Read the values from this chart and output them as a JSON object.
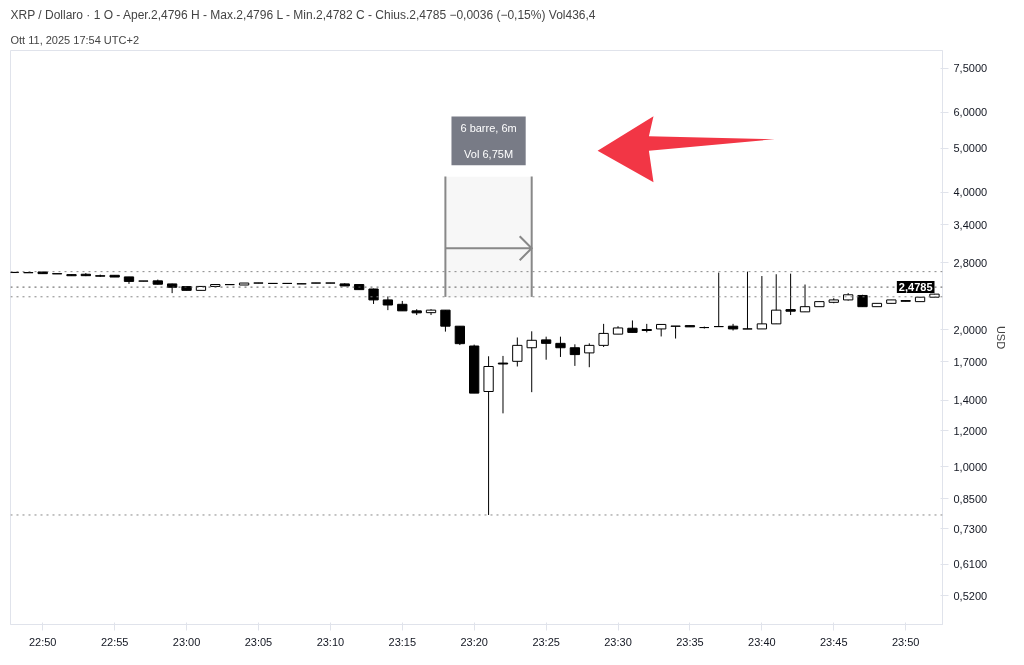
{
  "chart_data": {
    "type": "candlestick",
    "title": "XRP / Dollaro · 1  O - Aper.2,4796  H - Max.2,4796  L - Min.2,4782  C - Chius.2,4785  −0,0036 (−0,15%)  Vol436,4",
    "ylabel": "USD",
    "annotations": [
      "Ott 11, 2025 17:54 UTC+2"
    ],
    "log": "y",
    "grid": false,
    "color": "#000000",
    "x": [
      22.8,
      22.8167,
      22.8333,
      22.85,
      22.8667,
      22.8833,
      22.9,
      22.9167,
      22.9333,
      22.95,
      22.9667,
      22.9833,
      23,
      23.0167,
      23.0333,
      23.05,
      23.0667,
      23.0833,
      23.1,
      23.1167,
      23.1333,
      23.15,
      23.1667,
      23.1833,
      23.2,
      23.2167,
      23.2333,
      23.25,
      23.2667,
      23.2833,
      23.3,
      23.3167,
      23.3333,
      23.35,
      23.3667,
      23.3833,
      23.4,
      23.4167,
      23.4333,
      23.45,
      23.4667,
      23.4833,
      23.5,
      23.5167,
      23.5333,
      23.55,
      23.5667,
      23.5833,
      23.6,
      23.6167,
      23.6333,
      23.65,
      23.6667,
      23.6833,
      23.7,
      23.7167,
      23.7333,
      23.75,
      23.7667,
      23.7833,
      23.8,
      23.8167,
      23.8333,
      23.85,
      23.8667
    ],
    "ohlc": [
      [
        2.67,
        2.67,
        2.667,
        2.668
      ],
      [
        2.668,
        2.668,
        2.665,
        2.665
      ],
      [
        2.676,
        2.676,
        2.653,
        2.653
      ],
      [
        2.653,
        2.655,
        2.65,
        2.65
      ],
      [
        2.64,
        2.64,
        2.625,
        2.625
      ],
      [
        2.645,
        2.66,
        2.62,
        2.626
      ],
      [
        2.625,
        2.64,
        2.61,
        2.62
      ],
      [
        2.631,
        2.631,
        2.608,
        2.608
      ],
      [
        2.61,
        2.61,
        2.519,
        2.551
      ],
      [
        2.556,
        2.556,
        2.553,
        2.555
      ],
      [
        2.558,
        2.575,
        2.511,
        2.515
      ],
      [
        2.519,
        2.523,
        2.404,
        2.476
      ],
      [
        2.485,
        2.485,
        2.438,
        2.438
      ],
      [
        2.438,
        2.487,
        2.438,
        2.487
      ],
      [
        2.487,
        2.511,
        2.487,
        2.511
      ],
      [
        2.51,
        2.512,
        2.508,
        2.51
      ],
      [
        2.505,
        2.53,
        2.505,
        2.53
      ],
      [
        2.53,
        2.532,
        2.528,
        2.53
      ],
      [
        2.525,
        2.527,
        2.523,
        2.525
      ],
      [
        2.525,
        2.527,
        2.523,
        2.525
      ],
      [
        2.52,
        2.522,
        2.518,
        2.52
      ],
      [
        2.53,
        2.532,
        2.528,
        2.53
      ],
      [
        2.53,
        2.532,
        2.528,
        2.53
      ],
      [
        2.519,
        2.527,
        2.493,
        2.493
      ],
      [
        2.511,
        2.511,
        2.447,
        2.447
      ],
      [
        2.455,
        2.46,
        2.276,
        2.323
      ],
      [
        2.323,
        2.364,
        2.206,
        2.264
      ],
      [
        2.272,
        2.311,
        2.198,
        2.198
      ],
      [
        2.198,
        2.216,
        2.152,
        2.176
      ],
      [
        2.178,
        2.216,
        2.152,
        2.206
      ],
      [
        2.206,
        2.206,
        1.979,
        2.034
      ],
      [
        2.034,
        2.034,
        1.849,
        1.862
      ],
      [
        1.84,
        1.853,
        1.45,
        1.45
      ],
      [
        1.462,
        1.747,
        0.783,
        1.659
      ],
      [
        1.688,
        1.75,
        1.309,
        1.68
      ],
      [
        1.703,
        1.921,
        1.659,
        1.846
      ],
      [
        1.824,
        1.982,
        1.457,
        1.894
      ],
      [
        1.898,
        1.929,
        1.717,
        1.865
      ],
      [
        1.865,
        1.929,
        1.741,
        1.824
      ],
      [
        1.824,
        1.856,
        1.664,
        1.762
      ],
      [
        1.777,
        1.865,
        1.653,
        1.846
      ],
      [
        1.846,
        2.058,
        1.831,
        1.961
      ],
      [
        1.954,
        2.034,
        1.954,
        2.016
      ],
      [
        2.013,
        2.094,
        1.971,
        1.971
      ],
      [
        2.0,
        2.058,
        1.971,
        1.99
      ],
      [
        2.006,
        2.052,
        1.931,
        2.052
      ],
      [
        2.033,
        2.035,
        1.911,
        2.035
      ],
      [
        2.04,
        2.04,
        2.027,
        2.027
      ],
      [
        2.02,
        2.03,
        2.01,
        2.02
      ],
      [
        2.03,
        2.667,
        2.03,
        2.03
      ],
      [
        2.034,
        2.058,
        1.99,
        2.006
      ],
      [
        2.006,
        2.68,
        2.006,
        2.006
      ],
      [
        2.006,
        2.621,
        2.006,
        2.058
      ],
      [
        2.058,
        2.645,
        2.058,
        2.206
      ],
      [
        2.212,
        2.653,
        2.152,
        2.194
      ],
      [
        2.187,
        2.511,
        2.187,
        2.245
      ],
      [
        2.245,
        2.303,
        2.245,
        2.303
      ],
      [
        2.295,
        2.343,
        2.284,
        2.323
      ],
      [
        2.323,
        2.404,
        2.315,
        2.384
      ],
      [
        2.376,
        2.384,
        2.245,
        2.245
      ],
      [
        2.245,
        2.283,
        2.245,
        2.283
      ],
      [
        2.283,
        2.323,
        2.283,
        2.323
      ],
      [
        2.315,
        2.315,
        2.307,
        2.307
      ],
      [
        2.303,
        2.355,
        2.303,
        2.355
      ],
      [
        2.355,
        2.395,
        2.355,
        2.392
      ]
    ],
    "xlim": [
      22.796,
      23.876
    ],
    "xticks": [
      {
        "value": 22.8333,
        "label": "22:50"
      },
      {
        "value": 22.9167,
        "label": "22:55"
      },
      {
        "value": 23,
        "label": "23:00"
      },
      {
        "value": 23.0833,
        "label": "23:05"
      },
      {
        "value": 23.1667,
        "label": "23:10"
      },
      {
        "value": 23.25,
        "label": "23:15"
      },
      {
        "value": 23.3333,
        "label": "23:20"
      },
      {
        "value": 23.4167,
        "label": "23:25"
      },
      {
        "value": 23.5,
        "label": "23:30"
      },
      {
        "value": 23.5833,
        "label": "23:35"
      },
      {
        "value": 23.6667,
        "label": "23:40"
      },
      {
        "value": 23.75,
        "label": "23:45"
      },
      {
        "value": 23.8333,
        "label": "23:50"
      }
    ],
    "ylim": [
      0.45,
      8.2
    ],
    "yticks": [
      {
        "value": 0.52,
        "label": "0,5200"
      },
      {
        "value": 0.61,
        "label": "0,6100"
      },
      {
        "value": 0.73,
        "label": "0,7300"
      },
      {
        "value": 0.85,
        "label": "0,8500"
      },
      {
        "value": 1,
        "label": "1,0000"
      },
      {
        "value": 1.2,
        "label": "1,2000"
      },
      {
        "value": 1.4,
        "label": "1,4000"
      },
      {
        "value": 1.7,
        "label": "1,7000"
      },
      {
        "value": 2,
        "label": "2,0000"
      },
      {
        "value": 2.8,
        "label": "2,8000"
      },
      {
        "value": 3.4,
        "label": "3,4000"
      },
      {
        "value": 4,
        "label": "4,0000"
      },
      {
        "value": 5,
        "label": "5,0000"
      },
      {
        "value": 6,
        "label": "6,0000"
      },
      {
        "value": 7.5,
        "label": "7,5000"
      }
    ],
    "ref_lines": [
      {
        "axis": "y",
        "value": 2.68,
        "color": "#888888",
        "line_style": "dotted"
      },
      {
        "axis": "y",
        "value": 2.4785,
        "label": "2,4785",
        "color": "#555555",
        "line_style": "dotted"
      },
      {
        "axis": "y",
        "value": 2.36,
        "color": "#888888",
        "line_style": "dotted"
      },
      {
        "axis": "y",
        "value": 0.783,
        "color": "#888888",
        "line_style": "dotted"
      }
    ],
    "bands": [
      {
        "axis": "x",
        "from": 23.3,
        "to": 23.4,
        "label": "6 barre, 6m\nVol 6,75M",
        "color": "#888888"
      }
    ]
  }
}
